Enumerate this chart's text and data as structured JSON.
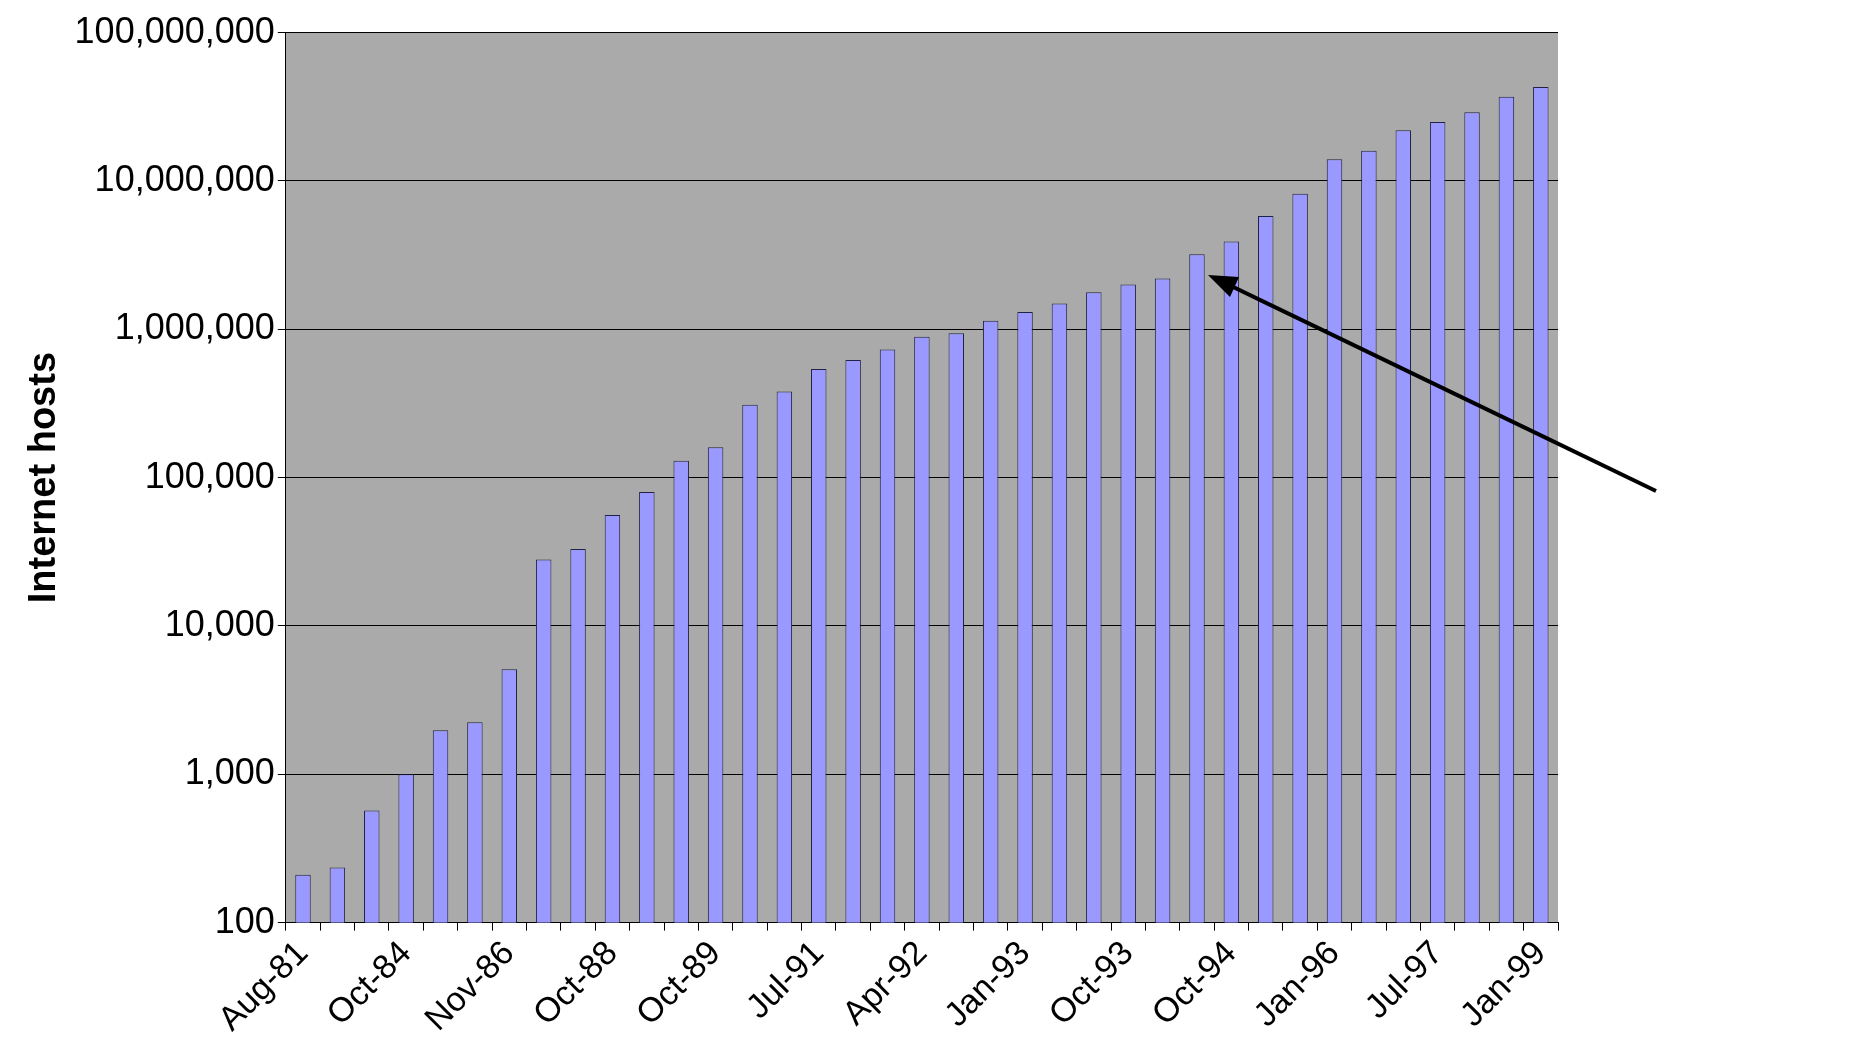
{
  "chart_data": {
    "type": "bar",
    "ylabel": "Internet hosts",
    "categories": [
      "Aug-81",
      null,
      null,
      "Oct-84",
      null,
      null,
      "Nov-86",
      null,
      null,
      "Oct-88",
      null,
      null,
      "Oct-89",
      null,
      null,
      "Jul-91",
      null,
      null,
      "Apr-92",
      null,
      null,
      "Jan-93",
      null,
      null,
      "Oct-93",
      null,
      null,
      "Oct-94",
      null,
      null,
      "Jan-96",
      null,
      null,
      "Jul-97",
      null,
      null,
      "Jan-99"
    ],
    "values": [
      210,
      235,
      570,
      1000,
      1980,
      2240,
      5100,
      28000,
      33000,
      56000,
      80000,
      130000,
      160000,
      310000,
      380000,
      540000,
      620000,
      730000,
      890000,
      940000,
      1140000,
      1310000,
      1490000,
      1780000,
      2000000,
      2200000,
      3200000,
      3900000,
      5800000,
      8200000,
      14000000,
      16000000,
      22000000,
      25000000,
      29000000,
      37000000,
      43000000
    ],
    "color": "#9999ff",
    "log": "y",
    "grid": "y",
    "ylim": [
      100,
      100000000
    ],
    "yticks": [
      100,
      {
        "value": 1000,
        "label": "1,000"
      },
      {
        "value": 10000,
        "label": "10,000"
      },
      {
        "value": 100000,
        "label": "100,000"
      },
      {
        "value": 1000000,
        "label": "1,000,000"
      },
      {
        "value": 10000000,
        "label": "10,000,000"
      },
      {
        "value": 100000000,
        "label": "100,000,000"
      }
    ]
  }
}
